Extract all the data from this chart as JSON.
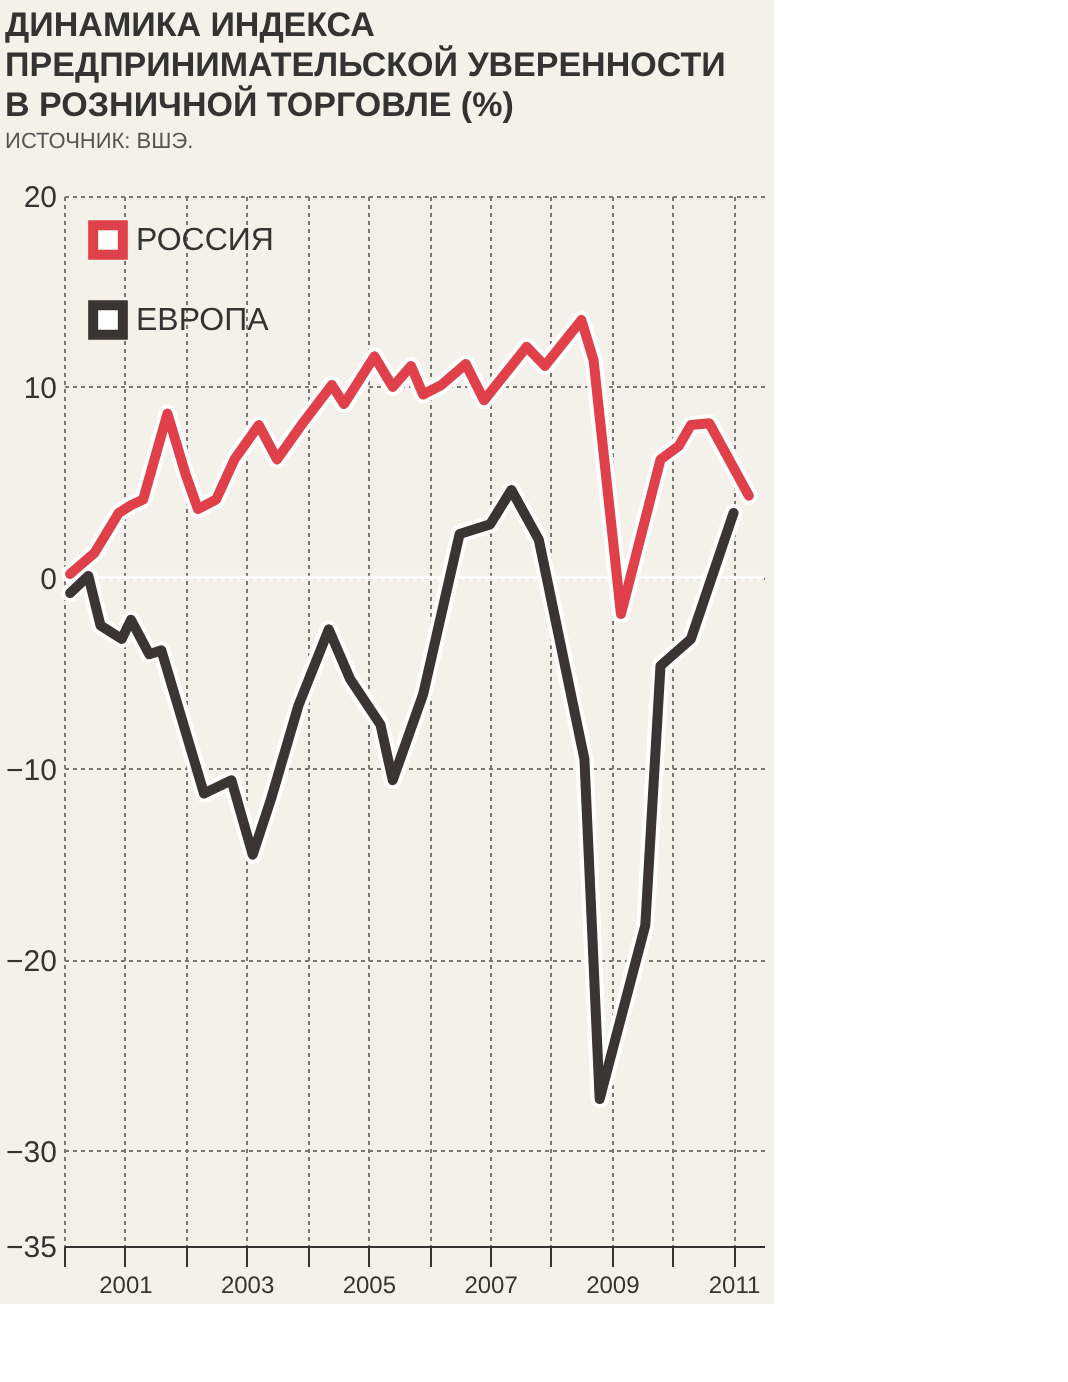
{
  "chart_data": {
    "type": "line",
    "title": "ДИНАМИКА ИНДЕКСА\nПРЕДПРИНИМАТЕЛЬСКОЙ УВЕРЕННОСТИ\nВ РОЗНИЧНОЙ ТОРГОВЛЕ (%)",
    "annotations": [
      "ИСТОЧНИК: ВШЭ."
    ],
    "series": [
      {
        "name": "РОССИЯ",
        "color": "#e0404a",
        "x": [
          2000.1,
          2000.5,
          2000.9,
          2001.1,
          2001.3,
          2001.7,
          2002.0,
          2002.2,
          2002.5,
          2002.8,
          2003.2,
          2003.5,
          2003.9,
          2004.4,
          2004.6,
          2005.1,
          2005.4,
          2005.7,
          2005.9,
          2006.2,
          2006.6,
          2006.9,
          2007.6,
          2007.9,
          2008.5,
          2008.7,
          2009.15,
          2009.8,
          2010.1,
          2010.3,
          2010.6,
          2011.25
        ],
        "values": [
          0.2,
          1.3,
          3.4,
          3.8,
          4.1,
          8.6,
          5.4,
          3.6,
          4.1,
          6.2,
          8.0,
          6.2,
          8.0,
          10.1,
          9.1,
          11.6,
          10.0,
          11.1,
          9.6,
          10.1,
          11.2,
          9.3,
          12.1,
          11.1,
          13.5,
          11.4,
          -1.9,
          6.2,
          6.9,
          8.0,
          8.1,
          4.3
        ]
      },
      {
        "name": "ЕВРОПА",
        "color": "#3a3533",
        "x": [
          2000.1,
          2000.4,
          2000.6,
          2000.95,
          2001.1,
          2001.4,
          2001.6,
          2002.3,
          2002.75,
          2003.1,
          2003.4,
          2003.85,
          2004.35,
          2004.7,
          2005.2,
          2005.4,
          2005.9,
          2006.5,
          2007.0,
          2007.35,
          2007.8,
          2008.55,
          2008.8,
          2009.55,
          2009.8,
          2010.3,
          2011.0
        ],
        "values": [
          -0.8,
          0.1,
          -2.5,
          -3.2,
          -2.2,
          -4.0,
          -3.8,
          -11.3,
          -10.6,
          -14.5,
          -11.6,
          -6.7,
          -2.7,
          -5.3,
          -7.7,
          -10.6,
          -6.1,
          2.3,
          2.8,
          4.6,
          2.0,
          -9.5,
          -27.3,
          -18.2,
          -4.6,
          -3.2,
          3.4
        ]
      }
    ],
    "xlim": [
      2000,
      2011.5
    ],
    "xticks": [
      {
        "value": 2000,
        "label": null
      },
      2001,
      {
        "value": 2002,
        "label": null
      },
      2003,
      {
        "value": 2004,
        "label": null
      },
      2005,
      {
        "value": 2006,
        "label": null
      },
      2007,
      {
        "value": 2008,
        "label": null
      },
      2009,
      {
        "value": 2010,
        "label": null
      },
      2011
    ],
    "ylim": [
      -35,
      20
    ],
    "yticks": [
      -35,
      -30,
      -20,
      -10,
      0,
      10,
      20
    ],
    "ref_lines": [
      {
        "axis": "y",
        "value": 0,
        "color": "#ffffff"
      }
    ],
    "grid": true,
    "legend": "top left",
    "marker": "none",
    "line_style": "solid"
  }
}
